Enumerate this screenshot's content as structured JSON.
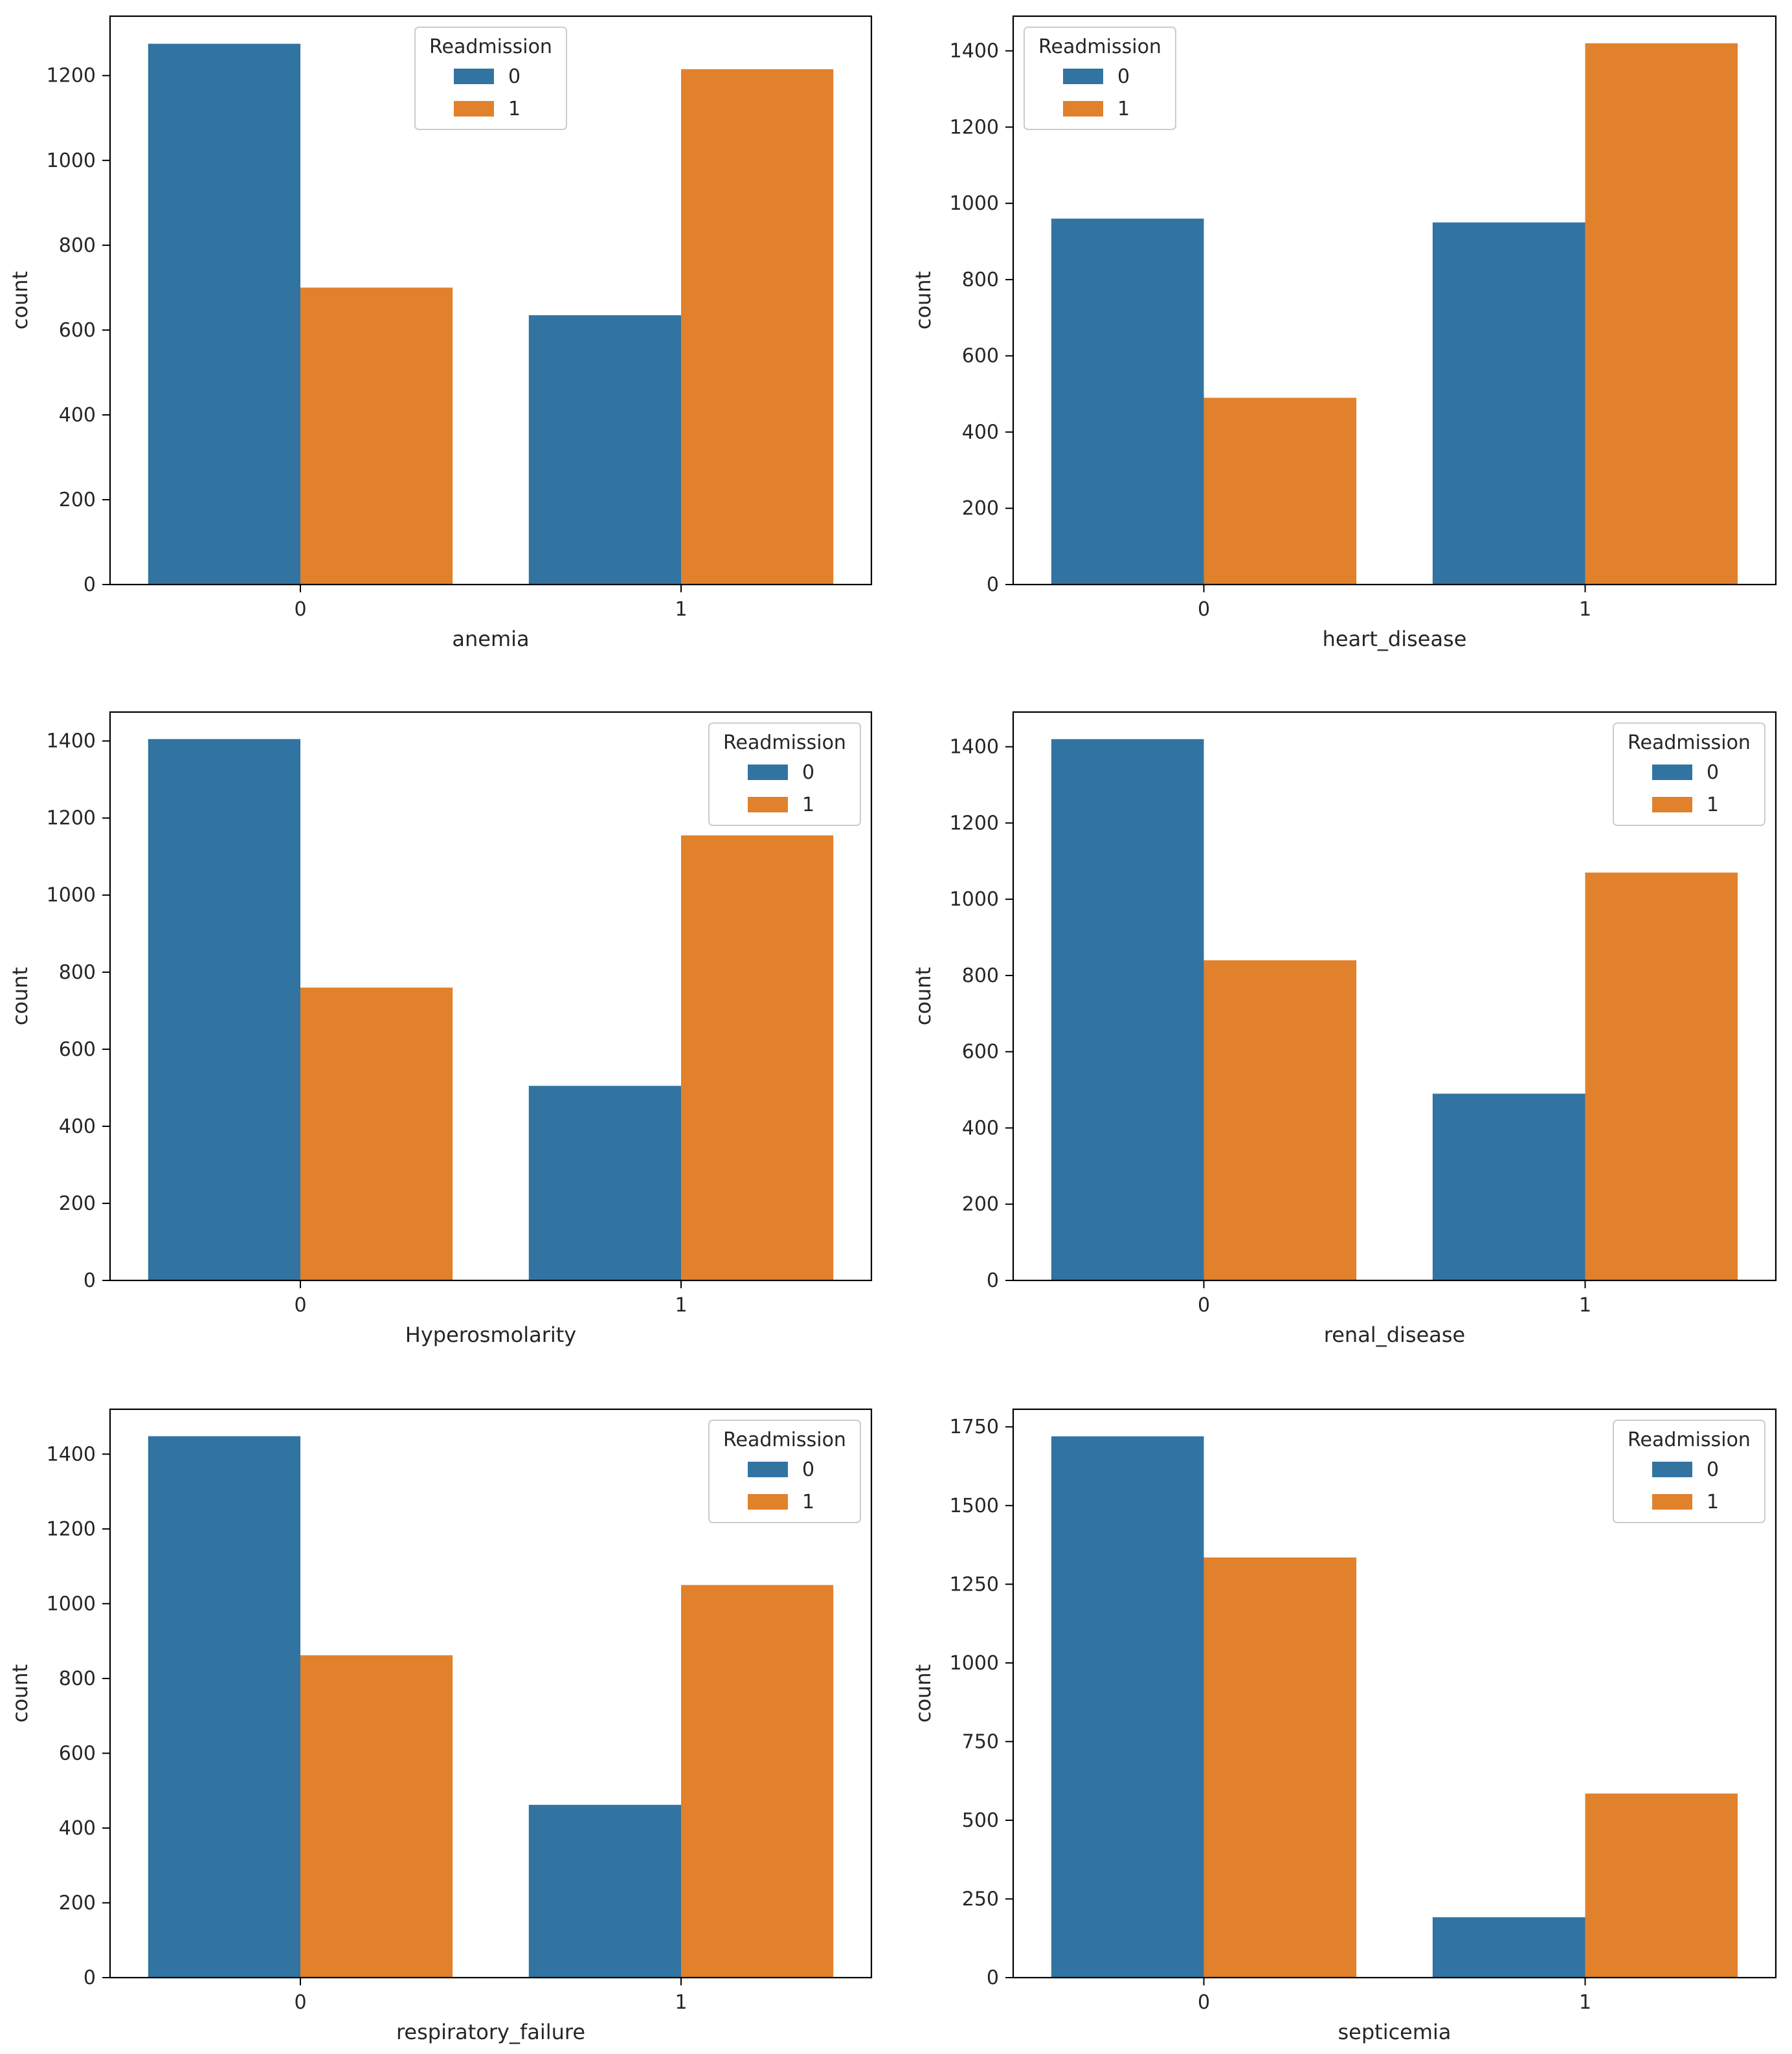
{
  "figure": {
    "legend_title": "Readmission",
    "colors": {
      "0": "#3274a1",
      "1": "#e1812c"
    }
  },
  "chart_data": [
    {
      "type": "bar",
      "xlabel": "anemia",
      "ylabel": "count",
      "categories": [
        "0",
        "1"
      ],
      "series": [
        {
          "name": "0",
          "values": [
            1275,
            635
          ]
        },
        {
          "name": "1",
          "values": [
            700,
            1215
          ]
        }
      ],
      "ylim": [
        0,
        1340
      ],
      "yticks": [
        0,
        200,
        400,
        600,
        800,
        1000,
        1200
      ],
      "legend": {
        "title": "Readmission",
        "placement": "upper-center"
      }
    },
    {
      "type": "bar",
      "xlabel": "heart_disease",
      "ylabel": "count",
      "categories": [
        "0",
        "1"
      ],
      "series": [
        {
          "name": "0",
          "values": [
            960,
            950
          ]
        },
        {
          "name": "1",
          "values": [
            490,
            1420
          ]
        }
      ],
      "ylim": [
        0,
        1491
      ],
      "yticks": [
        0,
        200,
        400,
        600,
        800,
        1000,
        1200,
        1400
      ],
      "legend": {
        "title": "Readmission",
        "placement": "upper-left"
      }
    },
    {
      "type": "bar",
      "xlabel": "Hyperosmolarity",
      "ylabel": "count",
      "categories": [
        "0",
        "1"
      ],
      "series": [
        {
          "name": "0",
          "values": [
            1405,
            505
          ]
        },
        {
          "name": "1",
          "values": [
            760,
            1155
          ]
        }
      ],
      "ylim": [
        0,
        1475
      ],
      "yticks": [
        0,
        200,
        400,
        600,
        800,
        1000,
        1200,
        1400
      ],
      "legend": {
        "title": "Readmission",
        "placement": "upper-right"
      }
    },
    {
      "type": "bar",
      "xlabel": "renal_disease",
      "ylabel": "count",
      "categories": [
        "0",
        "1"
      ],
      "series": [
        {
          "name": "0",
          "values": [
            1420,
            490
          ]
        },
        {
          "name": "1",
          "values": [
            840,
            1070
          ]
        }
      ],
      "ylim": [
        0,
        1491
      ],
      "yticks": [
        0,
        200,
        400,
        600,
        800,
        1000,
        1200,
        1400
      ],
      "legend": {
        "title": "Readmission",
        "placement": "upper-right"
      }
    },
    {
      "type": "bar",
      "xlabel": "respiratory_failure",
      "ylabel": "count",
      "categories": [
        "0",
        "1"
      ],
      "series": [
        {
          "name": "0",
          "values": [
            1448,
            462
          ]
        },
        {
          "name": "1",
          "values": [
            862,
            1050
          ]
        }
      ],
      "ylim": [
        0,
        1520
      ],
      "yticks": [
        0,
        200,
        400,
        600,
        800,
        1000,
        1200,
        1400
      ],
      "legend": {
        "title": "Readmission",
        "placement": "upper-right"
      }
    },
    {
      "type": "bar",
      "xlabel": "septicemia",
      "ylabel": "count",
      "categories": [
        "0",
        "1"
      ],
      "series": [
        {
          "name": "0",
          "values": [
            1720,
            192
          ]
        },
        {
          "name": "1",
          "values": [
            1335,
            585
          ]
        }
      ],
      "ylim": [
        0,
        1806
      ],
      "yticks": [
        0,
        250,
        500,
        750,
        1000,
        1250,
        1500,
        1750
      ],
      "legend": {
        "title": "Readmission",
        "placement": "upper-right"
      }
    }
  ]
}
